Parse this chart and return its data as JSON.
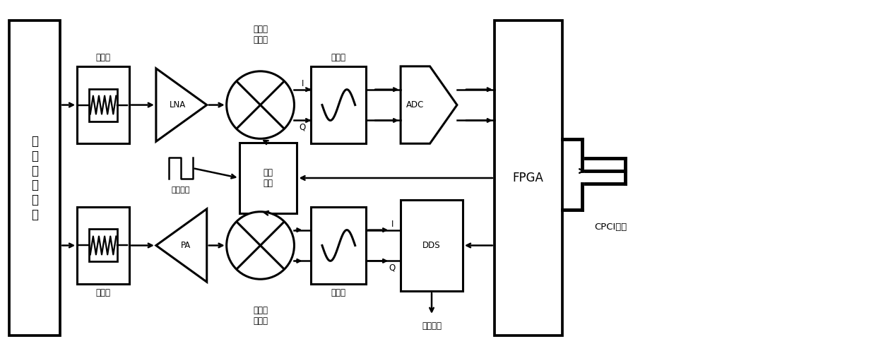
{
  "bg_color": "#ffffff",
  "fig_width": 12.4,
  "fig_height": 5.04,
  "mixer1_label": "正交下\n混频器",
  "mixer2_label": "正交上\n混频器",
  "filter1_label": "滤波器",
  "filter2_label": "滤波器",
  "trigger_label": "触发脉冲",
  "cpci_label": "CPCI总线",
  "matrix_label": "矩\n阵\n控\n制\n开\n关",
  "atten_label": "衰减器",
  "ref_clock_label": "参考时钟",
  "fpga_label": "FPGA",
  "dds_label": "DDS",
  "adc_label": "ADC",
  "lna_label": "LNA",
  "pa_label": "PA",
  "freq_label": "频综\n模块"
}
